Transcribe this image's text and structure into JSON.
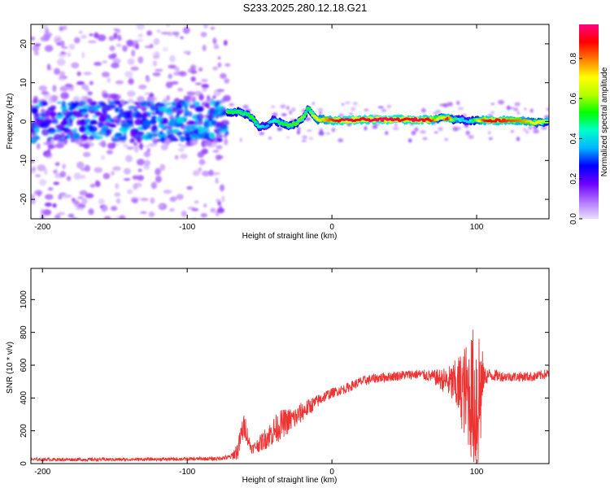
{
  "title": "S233.2025.280.12.18.G21",
  "chart_data": [
    {
      "type": "heatmap",
      "name": "spectrogram",
      "xlabel": "Height of straight line (km)",
      "ylabel": "Frequency (Hz)",
      "xlim": [
        -208,
        150
      ],
      "ylim": [
        -25,
        25
      ],
      "xticks": [
        -200,
        -100,
        0,
        100
      ],
      "yticks": [
        -20,
        -10,
        0,
        10,
        20
      ],
      "colorbar": {
        "label": "Normalized spectral amplitude",
        "range": [
          0.0,
          0.97
        ],
        "ticks": [
          0.0,
          0.2,
          0.4,
          0.6,
          0.8
        ],
        "tick_labels": [
          "0.0",
          "0.2",
          "0.4",
          "0.6",
          "0.8"
        ],
        "colors": [
          "#e8e0ff",
          "#b070ff",
          "#6a00ff",
          "#0000ff",
          "#00b4ff",
          "#00ffcc",
          "#00ff00",
          "#b4ff00",
          "#ffff00",
          "#ff8000",
          "#ff0000",
          "#ff0080"
        ]
      },
      "ridge_x": [
        -72,
        -65,
        -60,
        -55,
        -50,
        -45,
        -40,
        -35,
        -30,
        -25,
        -20,
        -16,
        -13,
        -10,
        -5,
        0,
        10,
        20,
        30,
        40,
        50,
        60,
        70,
        75,
        80,
        85,
        90,
        95,
        100,
        105,
        110,
        120,
        130,
        140,
        150
      ],
      "ridge_y": [
        2.5,
        2.5,
        2.0,
        1.0,
        -1.5,
        -1.0,
        0.5,
        -0.5,
        -1.0,
        -0.5,
        1.0,
        3.5,
        1.5,
        0.5,
        0.5,
        0.3,
        0.3,
        0.5,
        0.5,
        0.5,
        0.5,
        0.5,
        0.5,
        1.0,
        0.8,
        0.5,
        0.5,
        0.0,
        0.5,
        0.3,
        0.3,
        0.3,
        0.3,
        -0.3,
        0.0
      ],
      "ridge_amp": [
        0.55,
        0.5,
        0.5,
        0.55,
        0.45,
        0.35,
        0.45,
        0.5,
        0.55,
        0.55,
        0.6,
        0.5,
        0.65,
        0.7,
        0.75,
        0.85,
        0.95,
        0.9,
        0.95,
        0.95,
        0.9,
        0.95,
        0.85,
        0.6,
        0.9,
        0.5,
        0.4,
        0.4,
        0.6,
        0.85,
        0.9,
        0.85,
        0.8,
        0.7,
        0.6
      ]
    },
    {
      "type": "line",
      "name": "snr",
      "xlabel": "Height of straight line (km)",
      "ylabel": "SNR (10 * v/v)",
      "xlim": [
        -208,
        150
      ],
      "ylim": [
        0,
        1190
      ],
      "xticks": [
        -200,
        -100,
        0,
        100
      ],
      "yticks": [
        0,
        200,
        400,
        600,
        800,
        1000
      ],
      "color": "#ee3333",
      "series": [
        {
          "name": "SNR envelope",
          "x": [
            -208,
            -150,
            -100,
            -80,
            -70,
            -65,
            -62,
            -60,
            -57,
            -55,
            -52,
            -50,
            -45,
            -40,
            -35,
            -30,
            -25,
            -20,
            -15,
            -10,
            -5,
            0,
            10,
            20,
            30,
            40,
            50,
            60,
            70,
            80,
            85,
            90,
            95,
            98,
            100,
            102,
            105,
            110,
            120,
            130,
            140,
            150
          ],
          "y": [
            25,
            25,
            28,
            30,
            40,
            80,
            200,
            230,
            120,
            90,
            110,
            120,
            160,
            200,
            240,
            260,
            280,
            320,
            350,
            380,
            410,
            430,
            460,
            500,
            520,
            530,
            540,
            545,
            530,
            500,
            480,
            450,
            420,
            400,
            380,
            420,
            530,
            540,
            530,
            530,
            530,
            550
          ],
          "noise_amp": [
            10,
            10,
            10,
            12,
            15,
            60,
            80,
            80,
            40,
            30,
            40,
            50,
            70,
            90,
            90,
            80,
            70,
            60,
            50,
            40,
            35,
            30,
            30,
            30,
            30,
            30,
            30,
            30,
            40,
            90,
            150,
            250,
            350,
            450,
            550,
            500,
            60,
            40,
            30,
            30,
            30,
            30
          ]
        }
      ]
    }
  ]
}
